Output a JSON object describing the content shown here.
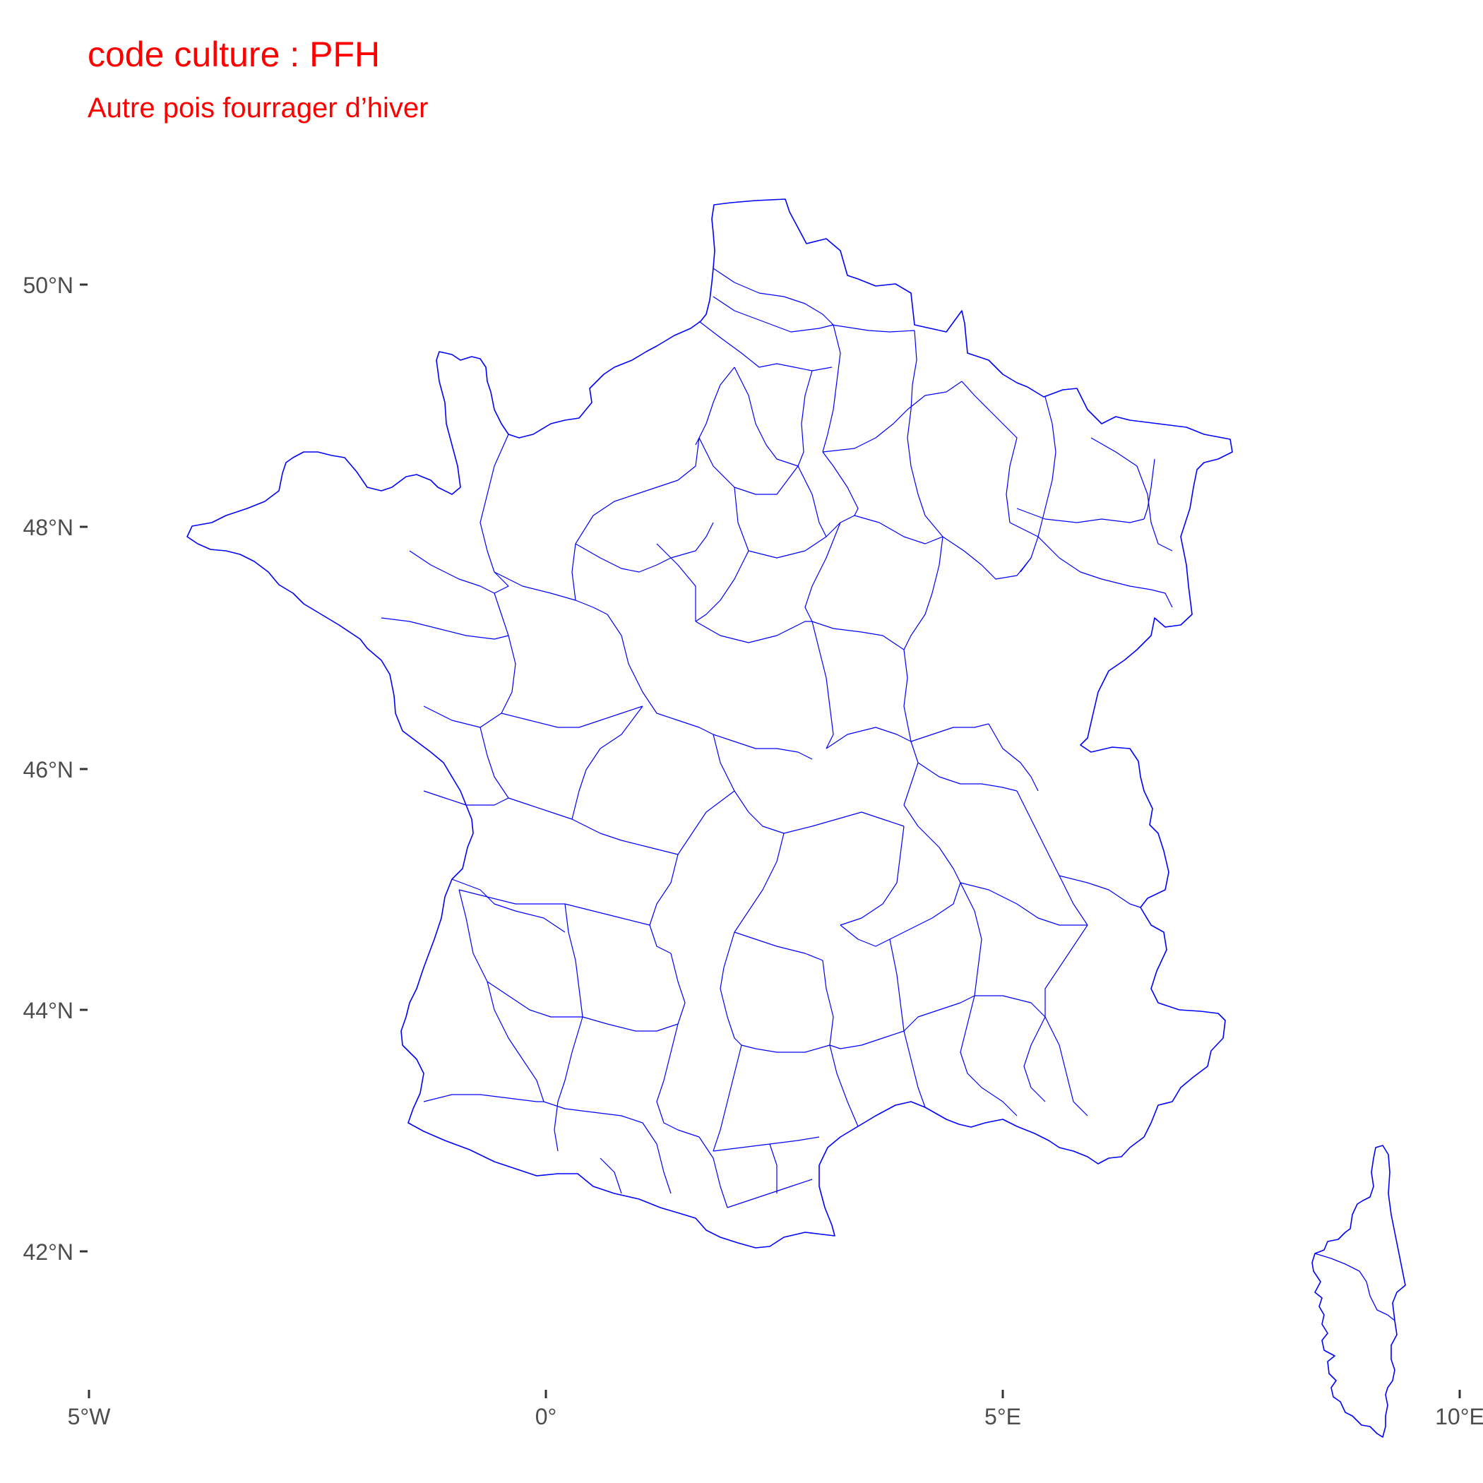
{
  "map": {
    "title": "code culture : PFH",
    "subtitle": "Autre pois fourrager d’hiver",
    "title_color": "#ff0000",
    "boundary_color": "#0000ff",
    "axis_text_color": "#4d4d4d",
    "tick_color": "#333333",
    "background": "#ffffff",
    "lon_ticks": [
      "5°W",
      "0°",
      "5°E",
      "10°E"
    ],
    "lat_ticks": [
      "50°N",
      "48°N",
      "46°N",
      "44°N",
      "42°N"
    ],
    "regions": [
      "France metropolitaine",
      "Corse"
    ]
  }
}
